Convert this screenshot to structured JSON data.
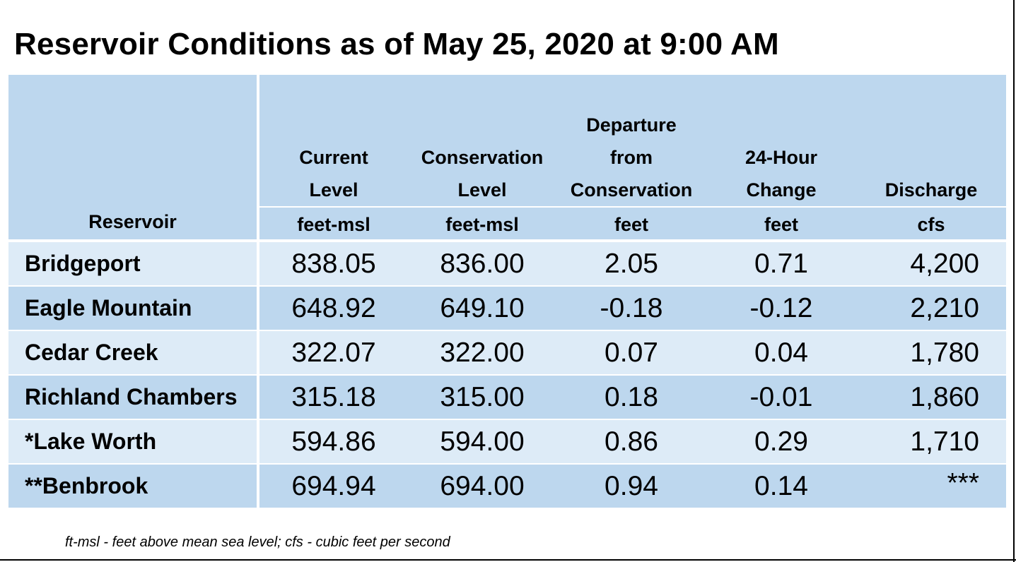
{
  "title": "Reservoir Conditions as of May 25, 2020 at 9:00 AM",
  "columns": [
    {
      "label_lines": [
        "",
        "",
        "Reservoir"
      ],
      "unit": ""
    },
    {
      "label_lines": [
        "",
        "Current",
        "Level"
      ],
      "unit": "feet-msl"
    },
    {
      "label_lines": [
        "",
        "Conservation",
        "Level"
      ],
      "unit": "feet-msl"
    },
    {
      "label_lines": [
        "Departure",
        "from",
        "Conservation"
      ],
      "unit": "feet"
    },
    {
      "label_lines": [
        "",
        "24-Hour",
        "Change"
      ],
      "unit": "feet"
    },
    {
      "label_lines": [
        "",
        "",
        "Discharge"
      ],
      "unit": "cfs"
    }
  ],
  "rows": [
    {
      "name": "Bridgeport",
      "current": "838.05",
      "conservation": "836.00",
      "departure": "2.05",
      "change": "0.71",
      "discharge": "4,200"
    },
    {
      "name": "Eagle Mountain",
      "current": "648.92",
      "conservation": "649.10",
      "departure": "-0.18",
      "change": "-0.12",
      "discharge": "2,210"
    },
    {
      "name": "Cedar Creek",
      "current": "322.07",
      "conservation": "322.00",
      "departure": "0.07",
      "change": "0.04",
      "discharge": "1,780"
    },
    {
      "name": "Richland Chambers",
      "current": "315.18",
      "conservation": "315.00",
      "departure": "0.18",
      "change": "-0.01",
      "discharge": "1,860"
    },
    {
      "name": "*Lake Worth",
      "current": "594.86",
      "conservation": "594.00",
      "departure": "0.86",
      "change": "0.29",
      "discharge": "1,710"
    },
    {
      "name": "**Benbrook",
      "current": "694.94",
      "conservation": "694.00",
      "departure": "0.94",
      "change": "0.14",
      "discharge": "***"
    }
  ],
  "footnote": "ft-msl - feet above mean sea level; cfs - cubic feet per second",
  "colors": {
    "header_bg": "#bdd7ee",
    "row_light": "#ddebf7",
    "row_dark": "#bdd7ee"
  }
}
